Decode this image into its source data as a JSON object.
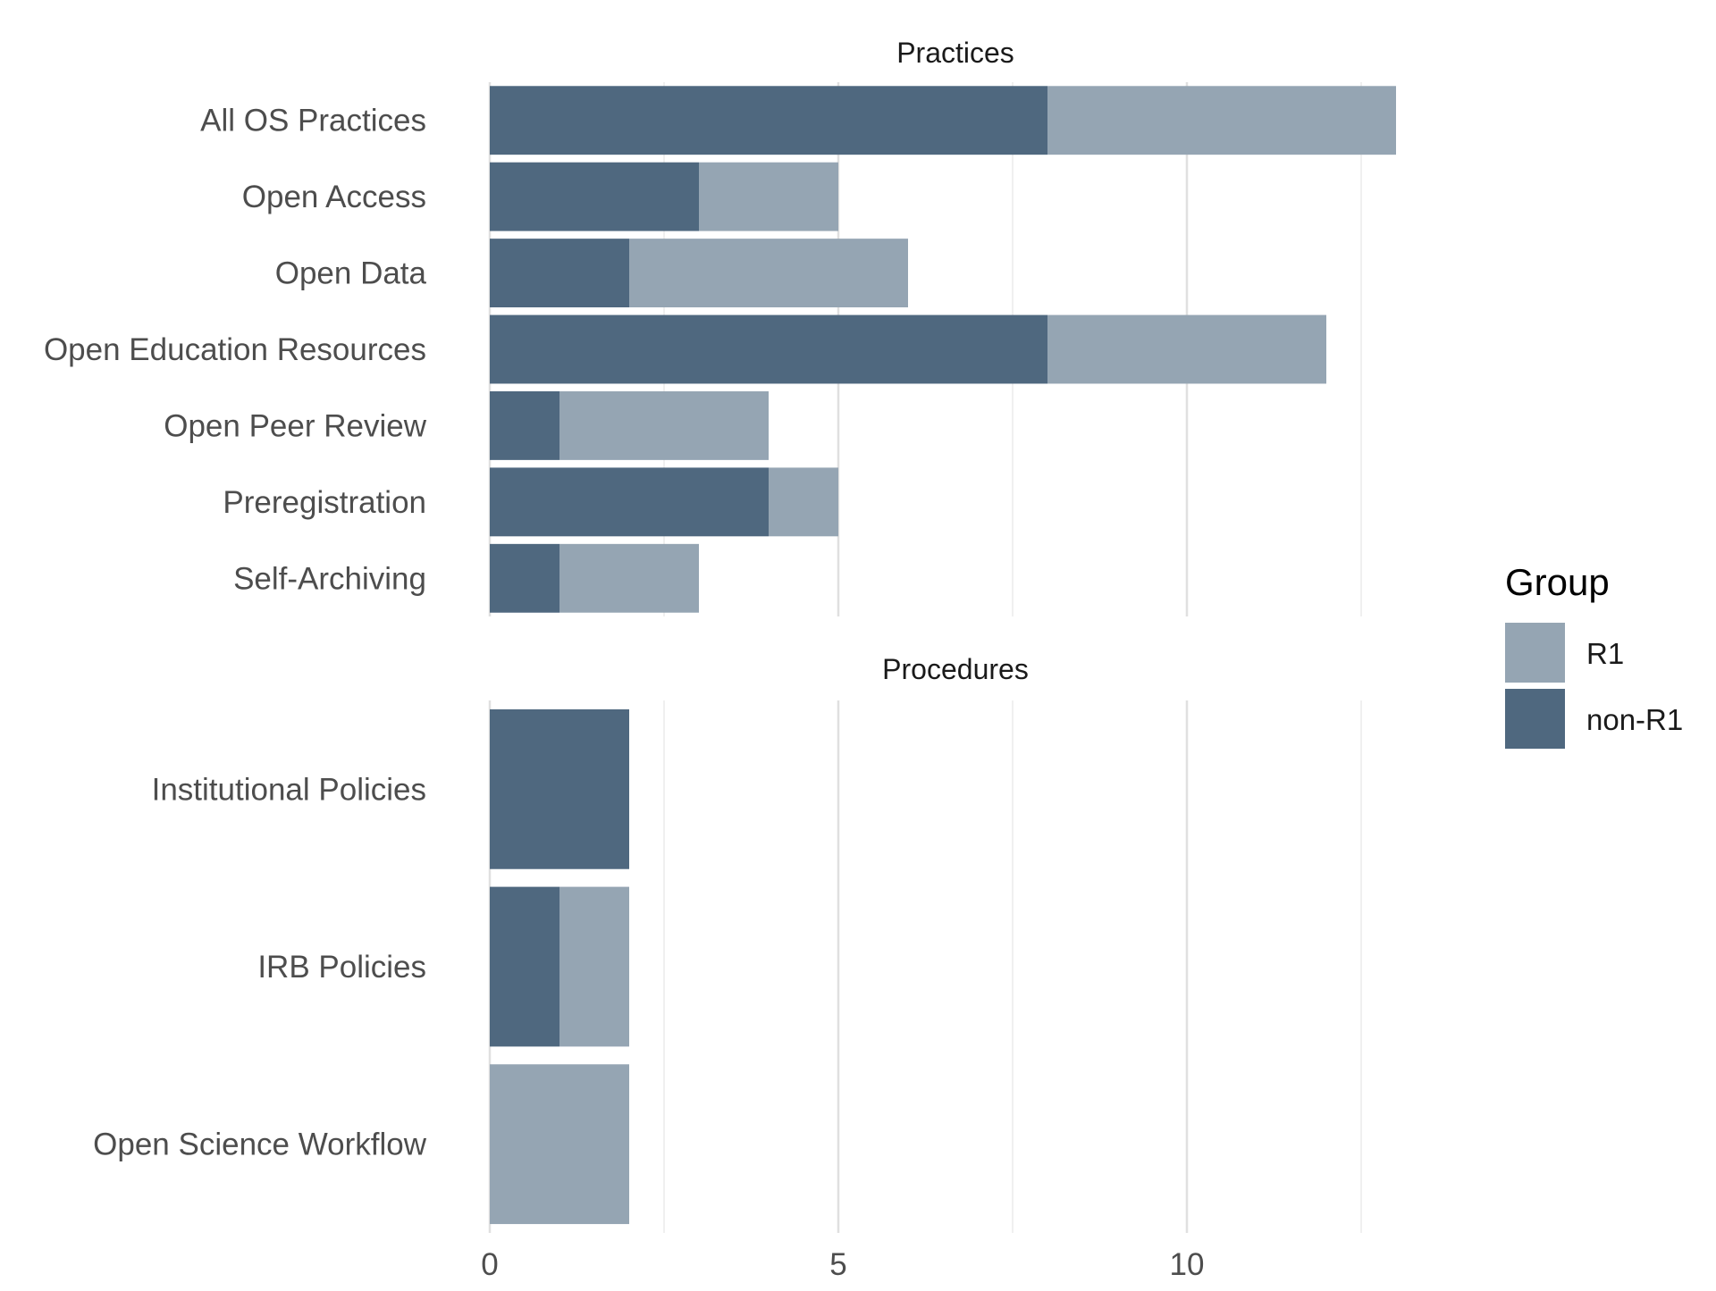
{
  "chart_data": {
    "type": "bar",
    "orientation": "horizontal",
    "stacked": true,
    "xlim": [
      0,
      13
    ],
    "x_ticks": [
      0,
      5,
      10
    ],
    "grid": true,
    "legend": {
      "title": "Group",
      "position": "right",
      "entries": [
        {
          "name": "R1",
          "color": "#95a5b3"
        },
        {
          "name": "non-R1",
          "color": "#4f687f"
        }
      ]
    },
    "panels": [
      {
        "title": "Practices",
        "categories": [
          "All OS Practices",
          "Open Access",
          "Open Data",
          "Open Education Resources",
          "Open Peer Review",
          "Preregistration",
          "Self-Archiving"
        ],
        "series": [
          {
            "name": "non-R1",
            "values": [
              8,
              3,
              2,
              8,
              1,
              4,
              1
            ]
          },
          {
            "name": "R1",
            "values": [
              5,
              2,
              4,
              4,
              3,
              1,
              2
            ]
          }
        ]
      },
      {
        "title": "Procedures",
        "categories": [
          "Institutional Policies",
          "IRB Policies",
          "Open Science Workflow"
        ],
        "series": [
          {
            "name": "non-R1",
            "values": [
              2,
              1,
              0
            ]
          },
          {
            "name": "R1",
            "values": [
              0,
              1,
              2
            ]
          }
        ]
      }
    ]
  }
}
